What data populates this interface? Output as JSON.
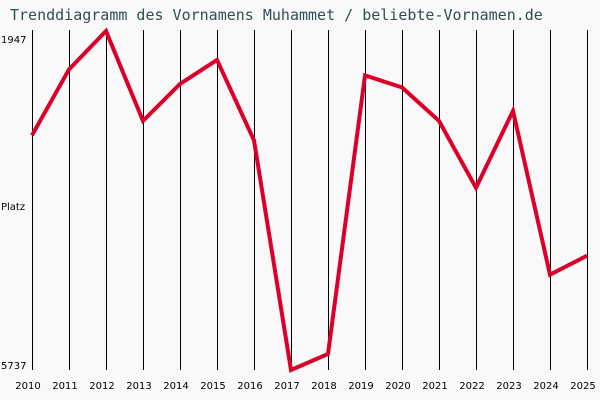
{
  "title": "Trenddiagramm des Vornamens Muhammet / beliebte-Vornamen.de",
  "y_axis": {
    "top_label": "1947",
    "middle_label": "Platz",
    "bottom_label": "5737"
  },
  "colors": {
    "line": "#dc0028",
    "grid": "#000000",
    "title": "#2f4f4f",
    "background": "#f9f9f9"
  },
  "chart_data": {
    "type": "line",
    "title": "Trenddiagramm des Vornamens Muhammet / beliebte-Vornamen.de",
    "xlabel": "",
    "ylabel": "Platz",
    "ylim": [
      5737,
      1947
    ],
    "y_inverted": true,
    "grid": "vertical",
    "categories": [
      "2010",
      "2011",
      "2012",
      "2013",
      "2014",
      "2015",
      "2016",
      "2017",
      "2018",
      "2019",
      "2020",
      "2021",
      "2022",
      "2023",
      "2024",
      "2025"
    ],
    "series": [
      {
        "name": "Muhammet",
        "values": [
          3113,
          2376,
          1947,
          2952,
          2539,
          2270,
          3169,
          5737,
          5558,
          2443,
          2578,
          2952,
          3700,
          2840,
          4671,
          4459
        ]
      }
    ]
  }
}
